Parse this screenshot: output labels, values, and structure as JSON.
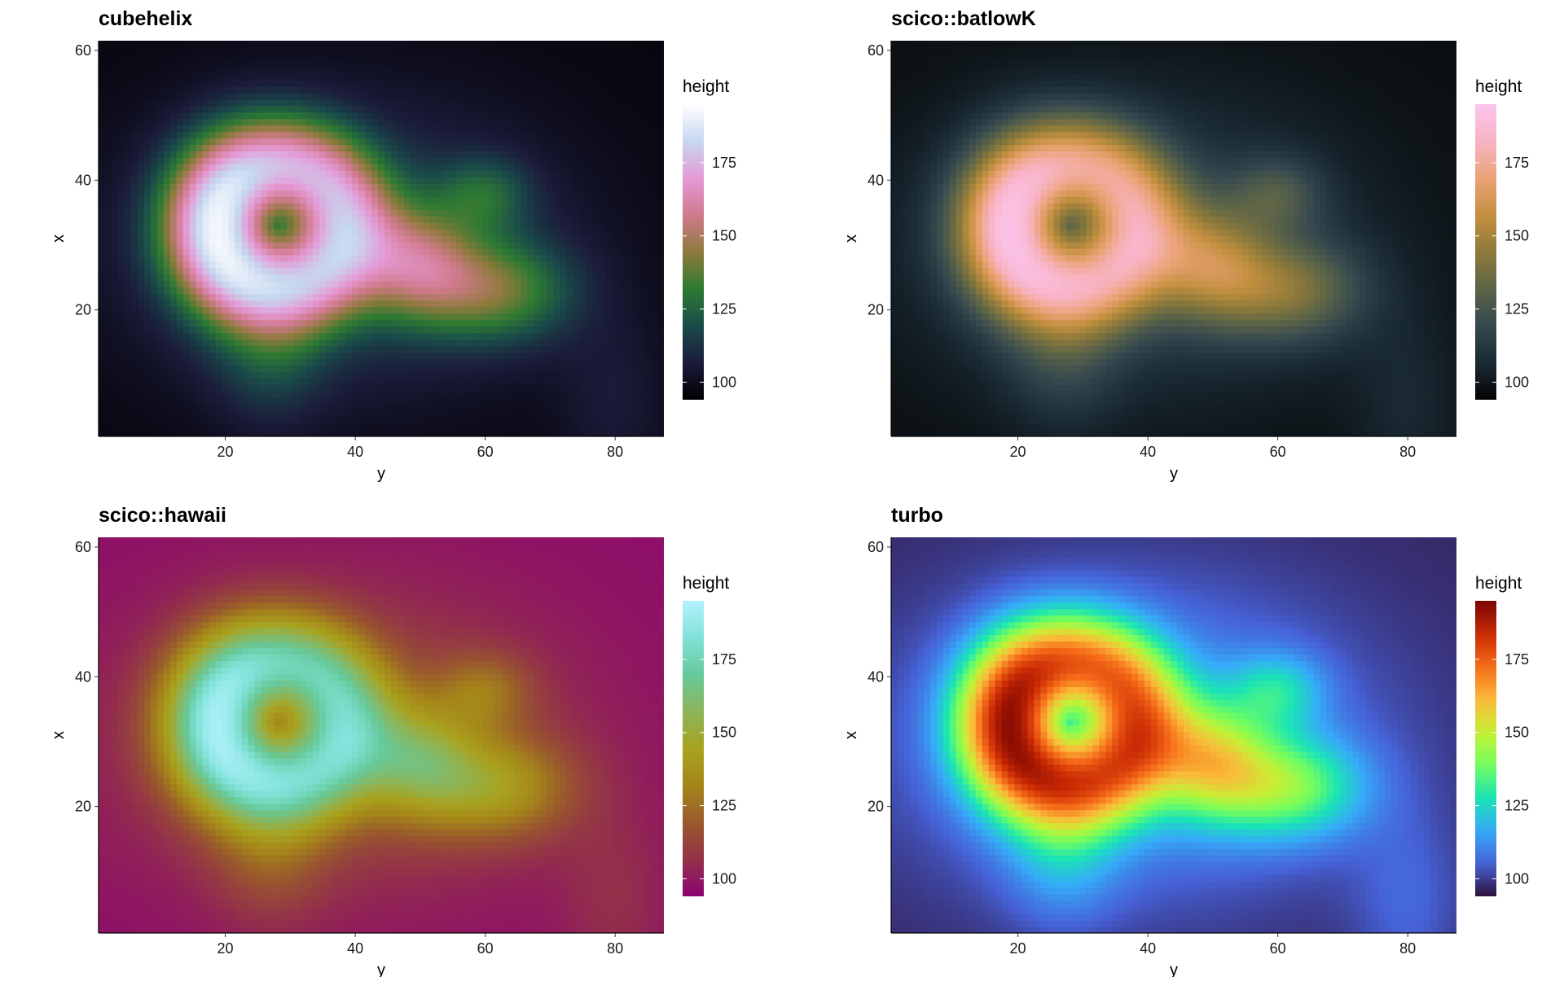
{
  "chart_data": [
    {
      "type": "heatmap",
      "title": "cubehelix",
      "xlabel": "y",
      "ylabel": "x",
      "xlim": [
        1,
        87
      ],
      "ylim": [
        1,
        61
      ],
      "xticks": [
        "20",
        "40",
        "60",
        "80"
      ],
      "yticks": [
        "20",
        "40",
        "60"
      ],
      "legend": {
        "title": "height",
        "range": [
          94,
          195
        ],
        "ticks": [
          "100",
          "125",
          "150",
          "175"
        ],
        "placement": "right"
      },
      "colors": [
        "#000000",
        "#1b1b3a",
        "#1a4b4a",
        "#2d7a32",
        "#8e7a3c",
        "#d07a8c",
        "#e59ad6",
        "#c6d8f0",
        "#ffffff"
      ]
    },
    {
      "type": "heatmap",
      "title": "scico::batlowK",
      "xlabel": "y",
      "ylabel": "x",
      "xlim": [
        1,
        87
      ],
      "ylim": [
        1,
        61
      ],
      "xticks": [
        "20",
        "40",
        "60",
        "80"
      ],
      "yticks": [
        "20",
        "40",
        "60"
      ],
      "legend": {
        "title": "height",
        "range": [
          94,
          195
        ],
        "ticks": [
          "100",
          "125",
          "150",
          "175"
        ],
        "placement": "right"
      },
      "colors": [
        "#050505",
        "#1a2a34",
        "#34484e",
        "#5c6448",
        "#8e7a3a",
        "#c49040",
        "#eba376",
        "#f8b4c6",
        "#fbc5ee"
      ]
    },
    {
      "type": "heatmap",
      "title": "scico::hawaii",
      "xlabel": "y",
      "ylabel": "x",
      "xlim": [
        1,
        87
      ],
      "ylim": [
        1,
        61
      ],
      "xticks": [
        "20",
        "40",
        "60",
        "80"
      ],
      "yticks": [
        "20",
        "40",
        "60"
      ],
      "legend": {
        "title": "height",
        "range": [
          94,
          195
        ],
        "ticks": [
          "100",
          "125",
          "150",
          "175"
        ],
        "placement": "right"
      },
      "colors": [
        "#8c0273",
        "#933249",
        "#995a2c",
        "#a5861a",
        "#a9a21e",
        "#8cb55a",
        "#66c99a",
        "#80e2d8",
        "#b3f2fd"
      ]
    },
    {
      "type": "heatmap",
      "title": "turbo",
      "xlabel": "y",
      "ylabel": "x",
      "xlim": [
        1,
        87
      ],
      "ylim": [
        1,
        61
      ],
      "xticks": [
        "20",
        "40",
        "60",
        "80"
      ],
      "yticks": [
        "20",
        "40",
        "60"
      ],
      "legend": {
        "title": "height",
        "range": [
          94,
          195
        ],
        "ticks": [
          "100",
          "125",
          "150",
          "175"
        ],
        "placement": "right"
      },
      "colors": [
        "#30123b",
        "#4662d7",
        "#36aaf9",
        "#1ae4b6",
        "#72fe5e",
        "#c8ef34",
        "#faba39",
        "#f66b19",
        "#ca2a04",
        "#7a0403"
      ]
    }
  ]
}
